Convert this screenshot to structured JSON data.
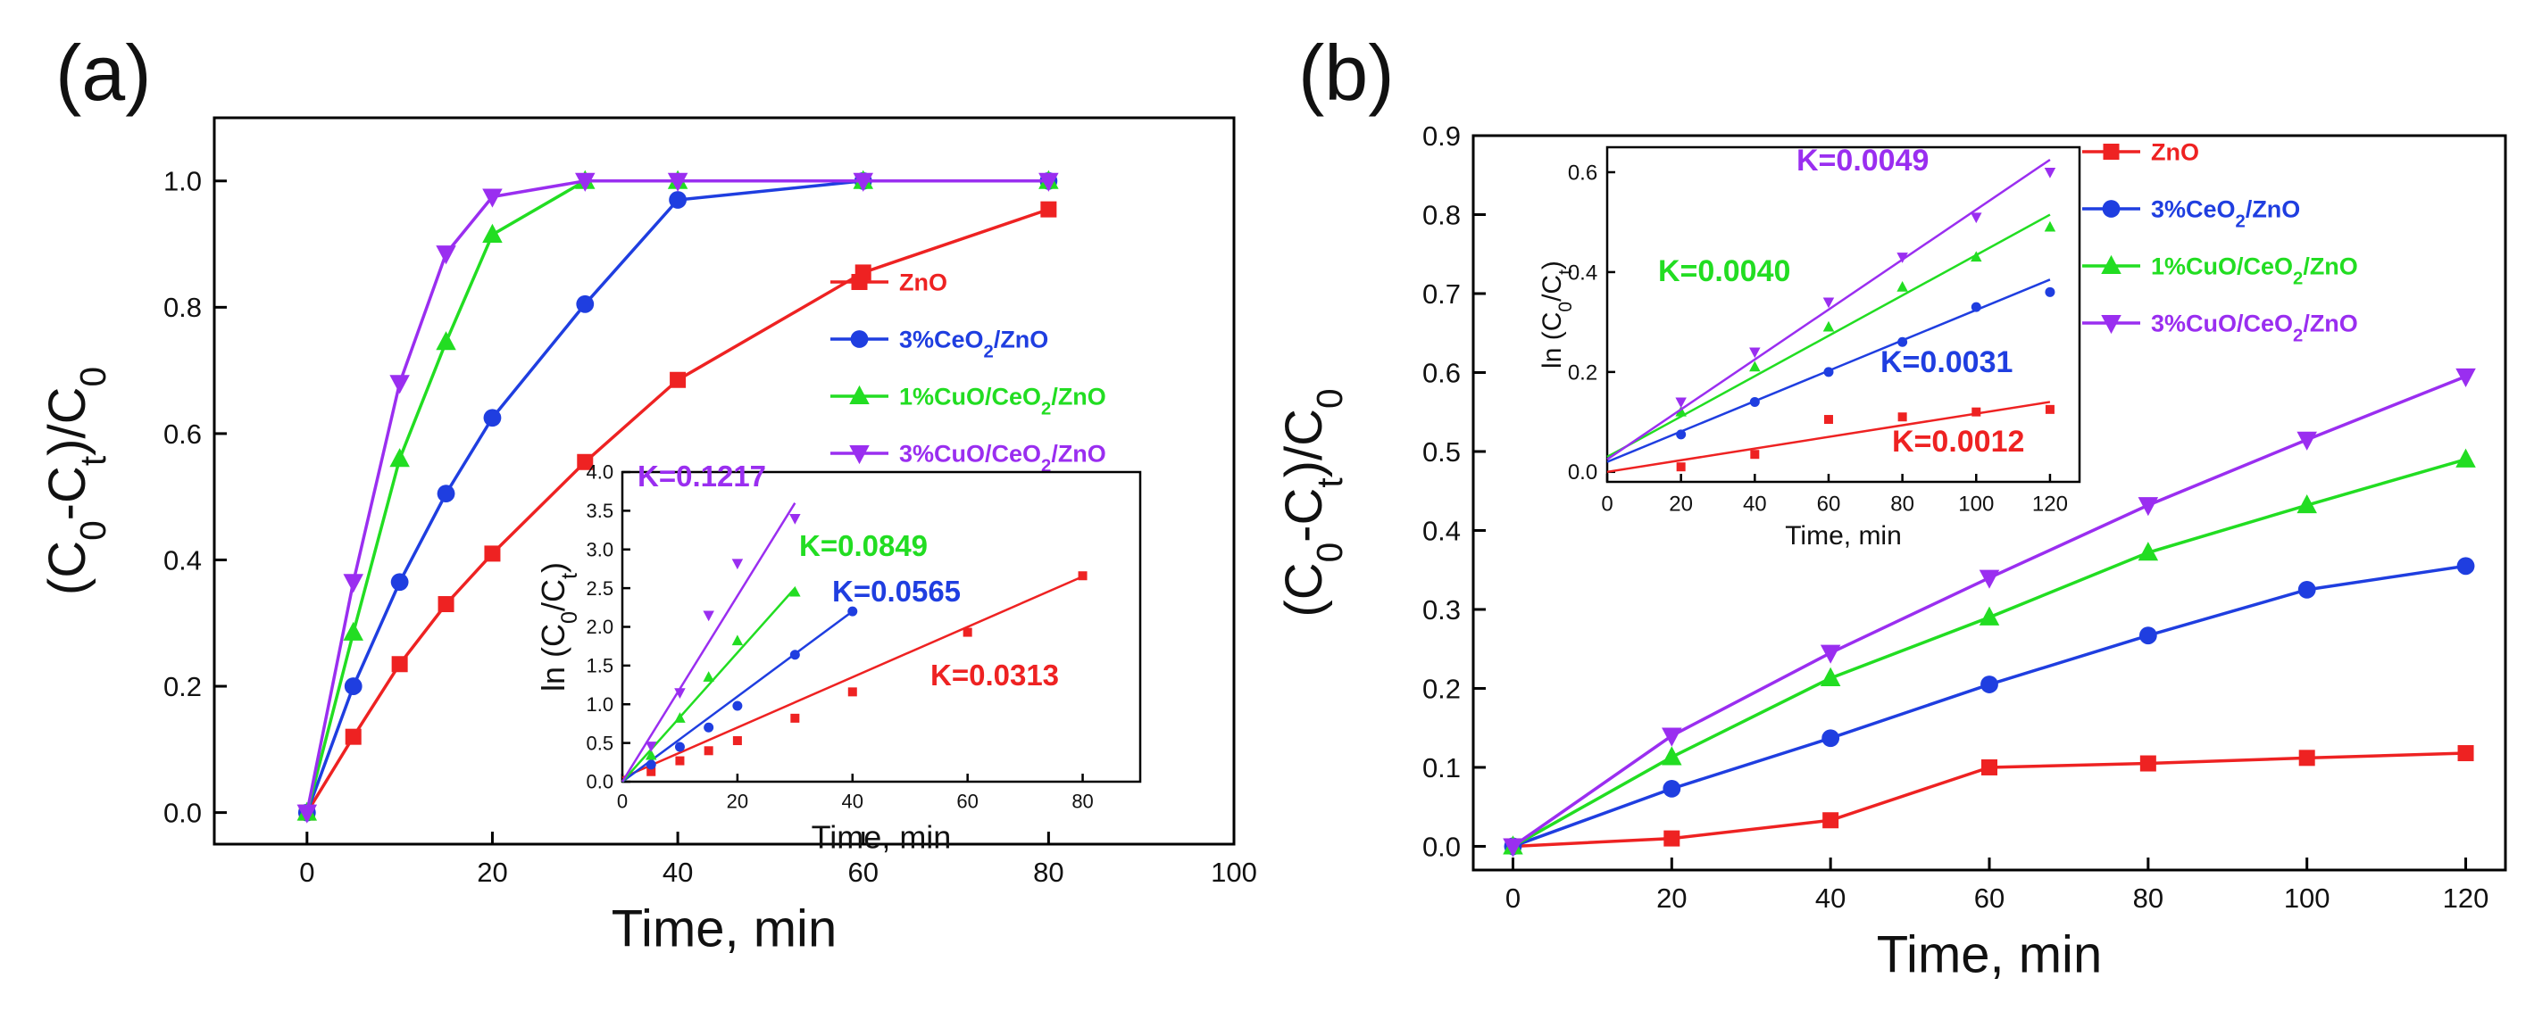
{
  "figure": {
    "panel_labels": [
      "(a)",
      "(b)"
    ]
  },
  "colors": {
    "ZnO": "#ee2222",
    "CeO2": "#1f3ee0",
    "CuO1": "#22dd22",
    "CuO3": "#9a2ef0",
    "axis": "#000000"
  },
  "chart_data": [
    {
      "id": "a-main",
      "type": "line",
      "panel": "(a)",
      "xlabel": "Time, min",
      "ylabel_parts": [
        "(C",
        "0",
        "-C",
        "t",
        ")/C",
        "0"
      ],
      "xlim": [
        -10,
        100
      ],
      "ylim": [
        -0.05,
        1.1
      ],
      "xticks": [
        0,
        20,
        40,
        60,
        80,
        100
      ],
      "yticks": [
        0.0,
        0.2,
        0.4,
        0.6,
        0.8,
        1.0
      ],
      "ytick_labels": [
        "0.0",
        "0.2",
        "0.4",
        "0.6",
        "0.8",
        "1.0"
      ],
      "series": [
        {
          "key": "ZnO",
          "marker": "square",
          "label_parts": [
            "ZnO"
          ],
          "x": [
            0,
            5,
            10,
            15,
            20,
            30,
            40,
            60,
            80
          ],
          "y": [
            0.0,
            0.12,
            0.235,
            0.33,
            0.41,
            0.555,
            0.685,
            0.855,
            0.955
          ]
        },
        {
          "key": "CeO2",
          "marker": "circle",
          "label_parts": [
            "3%CeO",
            "2",
            "/ZnO"
          ],
          "x": [
            0,
            5,
            10,
            15,
            20,
            30,
            40,
            60,
            80
          ],
          "y": [
            0.0,
            0.2,
            0.365,
            0.505,
            0.625,
            0.805,
            0.97,
            1.0,
            1.0
          ]
        },
        {
          "key": "CuO1",
          "marker": "triangle-up",
          "label_parts": [
            "1%CuO/CeO",
            "2",
            "/ZnO"
          ],
          "x": [
            0,
            5,
            10,
            15,
            20,
            30,
            40,
            60,
            80
          ],
          "y": [
            0.0,
            0.285,
            0.56,
            0.745,
            0.915,
            1.0,
            1.0,
            1.0,
            1.0
          ]
        },
        {
          "key": "CuO3",
          "marker": "triangle-down",
          "label_parts": [
            "3%CuO/CeO",
            "2",
            "/ZnO"
          ],
          "x": [
            0,
            5,
            10,
            15,
            20,
            30,
            40,
            60,
            80
          ],
          "y": [
            0.0,
            0.365,
            0.68,
            0.885,
            0.975,
            1.0,
            1.0,
            1.0,
            1.0
          ]
        }
      ]
    },
    {
      "id": "a-inset",
      "type": "scatter",
      "panel": "(a)",
      "xlabel": "Time, min",
      "ylabel_parts": [
        "ln (C",
        "0",
        "/C",
        "t",
        ")"
      ],
      "xlim": [
        0,
        90
      ],
      "ylim": [
        0,
        4.0
      ],
      "xticks": [
        0,
        20,
        40,
        60,
        80
      ],
      "yticks": [
        0,
        0.5,
        1.0,
        1.5,
        2.0,
        2.5,
        3.0,
        3.5,
        4.0
      ],
      "ytick_labels": [
        "0.0",
        "0.5",
        "1.0",
        "1.5",
        "2.0",
        "2.5",
        "3.0",
        "3.5",
        "4.0"
      ],
      "series": [
        {
          "key": "ZnO",
          "marker": "square",
          "k_label": "K=0.0313",
          "x": [
            5,
            10,
            15,
            20,
            30,
            40,
            60,
            80
          ],
          "y": [
            0.13,
            0.27,
            0.4,
            0.53,
            0.82,
            1.16,
            1.93,
            2.66
          ],
          "fit": [
            0,
            0.05,
            80,
            2.65
          ]
        },
        {
          "key": "CeO2",
          "marker": "circle",
          "k_label": "K=0.0565",
          "x": [
            5,
            10,
            15,
            20,
            30,
            40
          ],
          "y": [
            0.22,
            0.45,
            0.7,
            0.98,
            1.64,
            2.2
          ],
          "fit": [
            0,
            0.0,
            40,
            2.2
          ]
        },
        {
          "key": "CuO1",
          "marker": "triangle-up",
          "k_label": "K=0.0849",
          "x": [
            5,
            10,
            15,
            20,
            30
          ],
          "y": [
            0.34,
            0.82,
            1.35,
            1.82,
            2.45
          ],
          "fit": [
            0,
            0.0,
            30,
            2.5
          ]
        },
        {
          "key": "CuO3",
          "marker": "triangle-down",
          "k_label": "K=0.1217",
          "x": [
            5,
            10,
            15,
            20,
            30
          ],
          "y": [
            0.46,
            1.15,
            2.15,
            2.82,
            3.4
          ],
          "fit": [
            0,
            0.0,
            30,
            3.6
          ]
        }
      ]
    },
    {
      "id": "b-main",
      "type": "line",
      "panel": "(b)",
      "xlabel": "Time, min",
      "ylabel_parts": [
        "(C",
        "0",
        "-C",
        "t",
        ")/C",
        "0"
      ],
      "xlim": [
        -5,
        125
      ],
      "ylim": [
        -0.03,
        0.9
      ],
      "xticks": [
        0,
        20,
        40,
        60,
        80,
        100,
        120
      ],
      "yticks": [
        0.0,
        0.1,
        0.2,
        0.3,
        0.4,
        0.5,
        0.6,
        0.7,
        0.8,
        0.9
      ],
      "ytick_labels": [
        "0.0",
        "0.1",
        "0.2",
        "0.3",
        "0.4",
        "0.5",
        "0.6",
        "0.7",
        "0.8",
        "0.9"
      ],
      "series": [
        {
          "key": "ZnO",
          "marker": "square",
          "label_parts": [
            "ZnO"
          ],
          "x": [
            0,
            20,
            40,
            60,
            80,
            100,
            120
          ],
          "y": [
            0.0,
            0.01,
            0.033,
            0.1,
            0.105,
            0.112,
            0.118
          ]
        },
        {
          "key": "CeO2",
          "marker": "circle",
          "label_parts": [
            "3%CeO",
            "2",
            "/ZnO"
          ],
          "x": [
            0,
            20,
            40,
            60,
            80,
            100,
            120
          ],
          "y": [
            0.0,
            0.073,
            0.137,
            0.205,
            0.267,
            0.325,
            0.355
          ]
        },
        {
          "key": "CuO1",
          "marker": "triangle-up",
          "label_parts": [
            "1%CuO/CeO",
            "2",
            "/ZnO"
          ],
          "x": [
            0,
            20,
            40,
            60,
            80,
            100,
            120
          ],
          "y": [
            0.0,
            0.113,
            0.213,
            0.29,
            0.372,
            0.432,
            0.49
          ]
        },
        {
          "key": "CuO3",
          "marker": "triangle-down",
          "label_parts": [
            "3%CuO/CeO",
            "2",
            "/ZnO"
          ],
          "x": [
            0,
            20,
            40,
            60,
            80,
            100,
            120
          ],
          "y": [
            0.0,
            0.14,
            0.245,
            0.34,
            0.432,
            0.515,
            0.595
          ]
        }
      ]
    },
    {
      "id": "b-inset",
      "type": "scatter",
      "panel": "(b)",
      "xlabel": "Time, min",
      "ylabel_parts": [
        "ln (C",
        "0",
        "/C",
        "t",
        ")"
      ],
      "xlim": [
        0,
        128
      ],
      "ylim": [
        -0.02,
        0.65
      ],
      "xticks": [
        0,
        20,
        40,
        60,
        80,
        100,
        120
      ],
      "yticks": [
        0.0,
        0.2,
        0.4,
        0.6
      ],
      "ytick_labels": [
        "0.0",
        "0.2",
        "0.4",
        "0.6"
      ],
      "series": [
        {
          "key": "ZnO",
          "marker": "square",
          "k_label": "K=0.0012",
          "x": [
            20,
            40,
            60,
            80,
            100,
            120
          ],
          "y": [
            0.01,
            0.035,
            0.105,
            0.11,
            0.12,
            0.125
          ],
          "fit": [
            0,
            0.0,
            120,
            0.14
          ]
        },
        {
          "key": "CeO2",
          "marker": "circle",
          "k_label": "K=0.0031",
          "x": [
            20,
            40,
            60,
            80,
            100,
            120
          ],
          "y": [
            0.075,
            0.14,
            0.2,
            0.26,
            0.33,
            0.36
          ],
          "fit": [
            0,
            0.02,
            120,
            0.385
          ]
        },
        {
          "key": "CuO1",
          "marker": "triangle-up",
          "k_label": "K=0.0040",
          "x": [
            20,
            40,
            60,
            80,
            100,
            120
          ],
          "y": [
            0.12,
            0.21,
            0.29,
            0.37,
            0.43,
            0.49
          ],
          "fit": [
            0,
            0.03,
            120,
            0.515
          ]
        },
        {
          "key": "CuO3",
          "marker": "triangle-down",
          "k_label": "K=0.0049",
          "x": [
            20,
            40,
            60,
            80,
            100,
            120
          ],
          "y": [
            0.14,
            0.24,
            0.34,
            0.43,
            0.51,
            0.6
          ],
          "fit": [
            0,
            0.025,
            120,
            0.625
          ]
        }
      ]
    }
  ]
}
